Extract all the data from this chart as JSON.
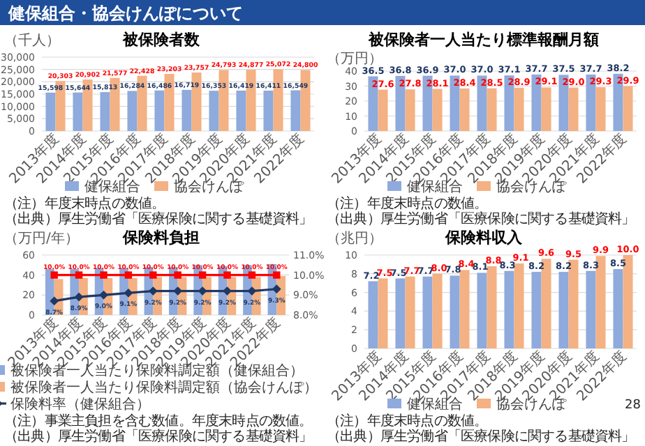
{
  "chart_data": [
    {
      "type": "bar",
      "title": "被保険者数",
      "ylabel": "（千人）",
      "categories": [
        "2013年度",
        "2014年度",
        "2015年度",
        "2016年度",
        "2017年度",
        "2018年度",
        "2019年度",
        "2020年度",
        "2021年度",
        "2022年度"
      ],
      "series": [
        {
          "name": "健保組合",
          "color": "#8faadc",
          "values": [
            15598,
            15644,
            15813,
            16284,
            16486,
            16719,
            16353,
            16419,
            16411,
            16549
          ],
          "value_labels": [
            "15,598",
            "15,644",
            "15,813",
            "16,284",
            "16,486",
            "16,719",
            "16,353",
            "16,419",
            "16,411",
            "16,549"
          ]
        },
        {
          "name": "協会けんぽ",
          "color": "#f4b183",
          "values": [
            20303,
            20902,
            21577,
            22428,
            23203,
            23757,
            24793,
            24877,
            25072,
            24800
          ],
          "value_labels": [
            "20,303",
            "20,902",
            "21,577",
            "22,428",
            "23,203",
            "23,757",
            "24,793",
            "24,877",
            "25,072",
            "24,800"
          ]
        }
      ],
      "ylim": [
        0,
        30000
      ],
      "yticks": [
        0,
        {
          "value": 5000,
          "label": "5,000"
        },
        {
          "value": 10000,
          "label": "10,000"
        },
        {
          "value": 15000,
          "label": "15,000"
        },
        {
          "value": 20000,
          "label": "20,000"
        },
        {
          "value": 25000,
          "label": "25,000"
        },
        {
          "value": 30000,
          "label": "30,000"
        }
      ],
      "grid": "y",
      "legend": "bottom",
      "annotations": [
        "健保組合・協会けんぽについて",
        "（注）年度末時点の数値。",
        "（出典）厚生労働省「医療保険に関する基礎資料」"
      ]
    },
    {
      "type": "bar",
      "title": "被保険者一人当たり標準報酬月額",
      "ylabel": "（万円）",
      "categories": [
        "2013年度",
        "2014年度",
        "2015年度",
        "2016年度",
        "2017年度",
        "2018年度",
        "2019年度",
        "2020年度",
        "2021年度",
        "2022年度"
      ],
      "series": [
        {
          "name": "健保組合",
          "color": "#8faadc",
          "values": [
            36.5,
            36.8,
            36.9,
            37.0,
            37.0,
            37.1,
            37.7,
            37.5,
            37.7,
            38.2
          ],
          "value_labels": [
            "36.5",
            "36.8",
            "36.9",
            "37.0",
            "37.0",
            "37.1",
            "37.7",
            "37.5",
            "37.7",
            "38.2"
          ]
        },
        {
          "name": "協会けんぽ",
          "color": "#f4b183",
          "values": [
            27.6,
            27.8,
            28.1,
            28.4,
            28.5,
            28.9,
            29.1,
            29.0,
            29.3,
            29.9
          ],
          "value_labels": [
            "27.6",
            "27.8",
            "28.1",
            "28.4",
            "28.5",
            "28.9",
            "29.1",
            "29.0",
            "29.3",
            "29.9"
          ]
        }
      ],
      "ylim": [
        0,
        40
      ],
      "yticks": [
        0,
        10,
        20,
        30,
        40
      ],
      "grid": "y",
      "legend": "bottom",
      "annotations": [
        "（注）年度末時点の数値。",
        "（出典）厚生労働省「医療保険に関する基礎資料」"
      ]
    },
    {
      "type": "bar",
      "title": "保険料負担",
      "ylabel": "（万円/年）",
      "categories": [
        "2013年度",
        "2014年度",
        "2015年度",
        "2016年度",
        "2017年度",
        "2018年度",
        "2019年度",
        "2020年度",
        "2021年度",
        "2022年度"
      ],
      "series": [
        {
          "name": "被保険者一人当たり保険料調定額（健保組合）",
          "color": "#8faadc",
          "values": [
            46,
            46,
            47,
            47,
            48,
            48,
            50,
            49,
            50,
            51
          ]
        },
        {
          "name": "被保険者一人当たり保険料調定額（協会けんぽ）",
          "color": "#f4b183",
          "values": [
            36,
            37,
            37,
            37,
            38,
            38,
            38,
            38,
            38,
            39
          ]
        },
        {
          "type": "line",
          "axis": "y2",
          "color": "#ff0000",
          "marker": "square",
          "values": [
            10.0,
            10.0,
            10.0,
            10.0,
            10.0,
            10.0,
            10.0,
            10.0,
            10.0,
            10.0
          ],
          "value_labels": [
            "10.0%",
            "10.0%",
            "10.0%",
            "10.0%",
            "10.0%",
            "10.0%",
            "10.0%",
            "10.0%",
            "10.0%",
            "10.0%"
          ]
        },
        {
          "type": "line",
          "axis": "y2",
          "name": "保険料率（健保組合）",
          "color": "#1f3864",
          "marker": "diamond",
          "values": [
            8.7,
            8.9,
            9.0,
            9.1,
            9.2,
            9.2,
            9.2,
            9.2,
            9.2,
            9.3
          ],
          "value_labels": [
            "8.7%",
            "8.9%",
            "9.0%",
            "9.1%",
            "9.2%",
            "9.2%",
            "9.2%",
            "9.2%",
            "9.2%",
            "9.3%"
          ]
        }
      ],
      "ylim": [
        0,
        60
      ],
      "yticks": [
        0,
        20,
        40,
        60
      ],
      "y2lim": [
        8,
        11
      ],
      "y2ticks": [
        {
          "value": 8,
          "label": "8.0%"
        },
        {
          "value": 9,
          "label": "9.0%"
        },
        {
          "value": 10,
          "label": "10.0%"
        },
        {
          "value": 11,
          "label": "11.0%"
        }
      ],
      "grid": "y",
      "legend": "bottom",
      "annotations": [
        "（注）事業主負担を含む数値。年度末時点の数値。",
        "（出典）厚生労働省「医療保険に関する基礎資料」"
      ]
    },
    {
      "type": "bar",
      "title": "保険料収入",
      "ylabel": "（兆円）",
      "categories": [
        "2013年度",
        "2014年度",
        "2015年度",
        "2016年度",
        "2017年度",
        "2018年度",
        "2019年度",
        "2020年度",
        "2021年度",
        "2022年度"
      ],
      "series": [
        {
          "name": "健保組合",
          "color": "#8faadc",
          "values": [
            7.2,
            7.5,
            7.7,
            7.8,
            8.1,
            8.3,
            8.2,
            8.2,
            8.3,
            8.5
          ],
          "value_labels": [
            "7.2",
            "7.5",
            "7.7",
            "7.8",
            "8.1",
            "8.3",
            "8.2",
            "8.2",
            "8.3",
            "8.5"
          ]
        },
        {
          "name": "協会けんぽ",
          "color": "#f4b183",
          "values": [
            7.5,
            7.7,
            8.0,
            8.4,
            8.8,
            9.1,
            9.6,
            9.5,
            9.9,
            10.0
          ],
          "value_labels": [
            "7.5",
            "7.7",
            "8.0",
            "8.4",
            "8.8",
            "9.1",
            "9.6",
            "9.5",
            "9.9",
            "10.0"
          ]
        }
      ],
      "ylim": [
        0,
        10
      ],
      "yticks": [
        0,
        2,
        4,
        6,
        8,
        10
      ],
      "grid": "y",
      "legend": "bottom",
      "annotations": [
        "（注）年度末時点の数値。",
        "（出典）厚生労働省「医療保険に関する基礎資料」",
        "28"
      ]
    }
  ]
}
